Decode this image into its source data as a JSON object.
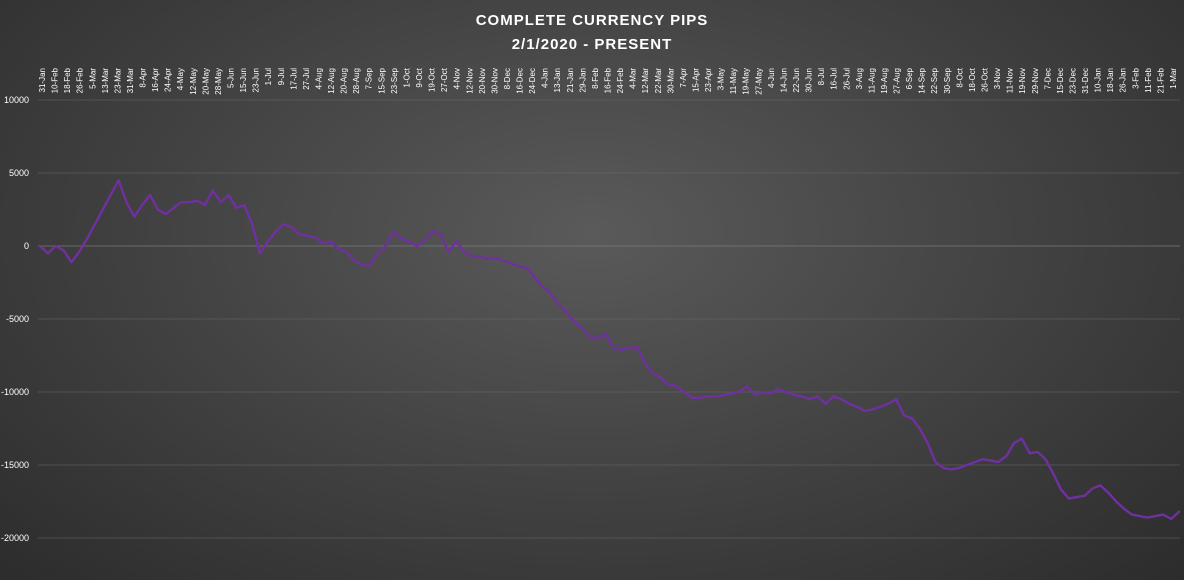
{
  "chart_data": {
    "type": "line",
    "title": "COMPLETE CURRENCY PIPS",
    "subtitle": "2/1/2020 - PRESENT",
    "xlabel": "",
    "ylabel": "",
    "ylim": [
      -20000,
      10000
    ],
    "yticks": [
      10000,
      5000,
      0,
      -5000,
      -10000,
      -15000,
      -20000
    ],
    "ytick_labels": [
      "10000",
      "5000",
      "0",
      "-5000",
      "-10000",
      "-15000",
      "-20000"
    ],
    "grid": true,
    "legend": "none",
    "line_color": "#7030a0",
    "xtick_labels": [
      "31-Jan",
      "10-Feb",
      "18-Feb",
      "26-Feb",
      "5-Mar",
      "13-Mar",
      "23-Mar",
      "31-Mar",
      "8-Apr",
      "16-Apr",
      "24-Apr",
      "4-May",
      "12-May",
      "20-May",
      "28-May",
      "5-Jun",
      "15-Jun",
      "23-Jun",
      "1-Jul",
      "9-Jul",
      "17-Jul",
      "27-Jul",
      "4-Aug",
      "12-Aug",
      "20-Aug",
      "28-Aug",
      "7-Sep",
      "15-Sep",
      "23-Sep",
      "1-Oct",
      "9-Oct",
      "19-Oct",
      "27-Oct",
      "4-Nov",
      "12-Nov",
      "20-Nov",
      "30-Nov",
      "8-Dec",
      "16-Dec",
      "24-Dec",
      "4-Jan",
      "13-Jan",
      "21-Jan",
      "29-Jan",
      "8-Feb",
      "16-Feb",
      "24-Feb",
      "4-Mar",
      "12-Mar",
      "22-Mar",
      "30-Mar",
      "7-Apr",
      "15-Apr",
      "23-Apr",
      "3-May",
      "11-May",
      "19-May",
      "27-May",
      "4-Jun",
      "14-Jun",
      "22-Jun",
      "30-Jun",
      "8-Jul",
      "16-Jul",
      "26-Jul",
      "3-Aug",
      "11-Aug",
      "19-Aug",
      "27-Aug",
      "6-Sep",
      "14-Sep",
      "22-Sep",
      "30-Sep",
      "8-Oct",
      "18-Oct",
      "26-Oct",
      "3-Nov",
      "11-Nov",
      "19-Nov",
      "29-Nov",
      "7-Dec",
      "15-Dec",
      "23-Dec",
      "31-Dec",
      "10-Jan",
      "18-Jan",
      "26-Jan",
      "3-Feb",
      "11-Feb",
      "21-Feb",
      "1-Mar"
    ],
    "series": [
      {
        "values": [
          0,
          -500,
          0,
          -300,
          -1100,
          -400,
          500,
          1500,
          2500,
          3500,
          4500,
          3000,
          2000,
          2800,
          3500,
          2500,
          2200,
          2600,
          3000,
          3000,
          3100,
          2800,
          3800,
          3000,
          3500,
          2600,
          2800,
          1500,
          -500,
          300,
          1000,
          1500,
          1300,
          800,
          700,
          600,
          200,
          300,
          -200,
          -400,
          -1000,
          -1300,
          -1300,
          -500,
          0,
          1000,
          500,
          300,
          0,
          400,
          1000,
          800,
          -400,
          300,
          -400,
          -700,
          -700,
          -900,
          -800,
          -1000,
          -1200,
          -1400,
          -1500,
          -2200,
          -2800,
          -3200,
          -4000,
          -4500,
          -5200,
          -5600,
          -6200,
          -6400,
          -6000,
          -7000,
          -7100,
          -7000,
          -6900,
          -8000,
          -8700,
          -9000,
          -9500,
          -9600,
          -10000,
          -10400,
          -10400,
          -10300,
          -10300,
          -10200,
          -10100,
          -10000,
          -9600,
          -10200,
          -10000,
          -10100,
          -9800,
          -10000,
          -10200,
          -10300,
          -10500,
          -10300,
          -10800,
          -10300,
          -10500,
          -10800,
          -11000,
          -11300,
          -11200,
          -11000,
          -10800,
          -10500,
          -11600,
          -11800,
          -12500,
          -13500,
          -14800,
          -15200,
          -15300,
          -15200,
          -15000,
          -14800,
          -14600,
          -14700,
          -14800,
          -14400,
          -13500,
          -13200,
          -14200,
          -14100,
          -14600,
          -15600,
          -16700,
          -17300,
          -17200,
          -17100,
          -16600,
          -16400,
          -16900,
          -17500,
          -18000,
          -18400,
          -18500,
          -18600,
          -18500,
          -18400,
          -18700,
          -18200
        ]
      }
    ]
  }
}
